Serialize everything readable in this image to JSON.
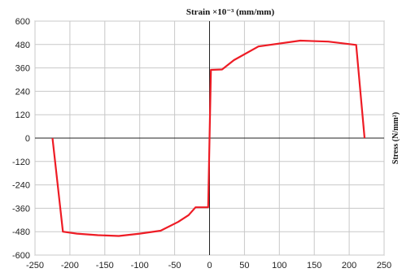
{
  "chart_data": {
    "type": "line",
    "title": "Strain ×10⁻³ (mm/mm)",
    "xlabel": "Strain ×10⁻³ (mm/mm)",
    "ylabel": "Stress (N/mm²)",
    "xlim": [
      -250,
      250
    ],
    "ylim": [
      -600,
      600
    ],
    "xticks": [
      -250,
      -200,
      -150,
      -100,
      -50,
      0,
      50,
      100,
      150,
      200,
      250
    ],
    "yticks": [
      600,
      480,
      360,
      240,
      120,
      0,
      -120,
      -240,
      -360,
      -480,
      -600
    ],
    "grid": true,
    "legend": "none",
    "series": [
      {
        "color": "#ee1c25",
        "x": [
          -225,
          -210,
          -190,
          -160,
          -130,
          -100,
          -70,
          -45,
          -30,
          -20,
          -2,
          0,
          2,
          18,
          35,
          70,
          130,
          170,
          210,
          222
        ],
        "y": [
          0,
          -480,
          -490,
          -498,
          -502,
          -490,
          -475,
          -430,
          -395,
          -355,
          -355,
          0,
          350,
          352,
          400,
          470,
          500,
          495,
          478,
          0
        ]
      }
    ]
  }
}
